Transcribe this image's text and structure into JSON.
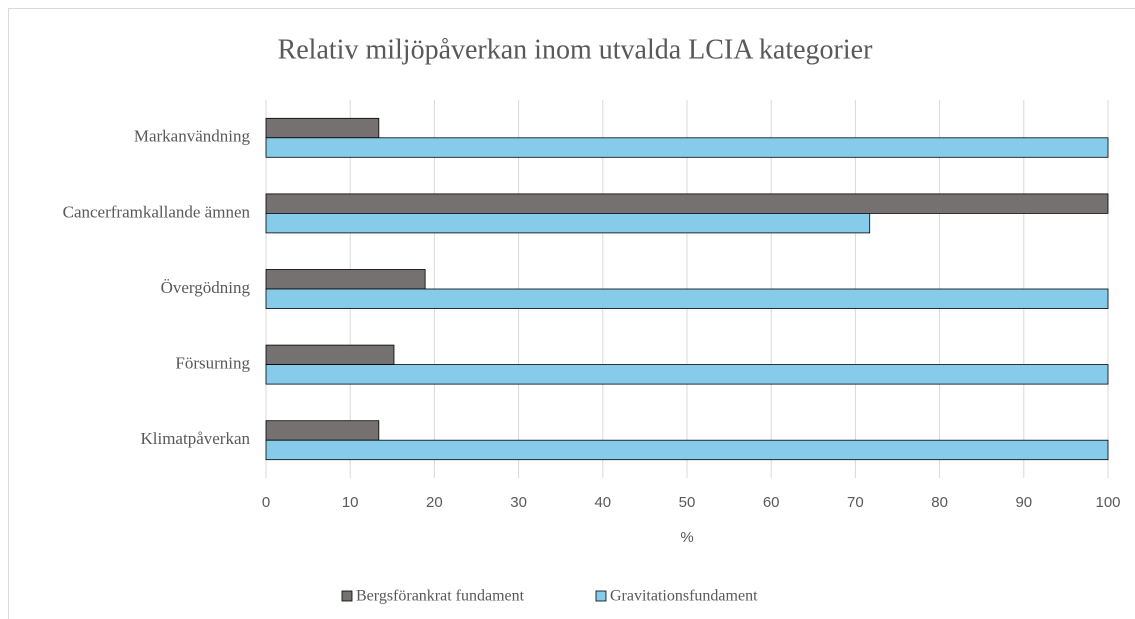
{
  "chart_data": {
    "type": "barh",
    "title": "Relativ miljöpåverkan inom utvalda LCIA kategorier",
    "xlabel": "%",
    "categories": [
      "Markanvändning",
      "Cancerframkallande ämnen",
      "Övergödning",
      "Försurning",
      "Klimatpåverkan"
    ],
    "series": [
      {
        "name": "Bergsförankrat fundament",
        "color": "#767171",
        "values": [
          13.4,
          100,
          18.9,
          15.2,
          13.4
        ]
      },
      {
        "name": "Gravitationsfundament",
        "color": "#87cbeb",
        "values": [
          100,
          71.7,
          100,
          100,
          100
        ]
      }
    ],
    "xlim": [
      0,
      100
    ],
    "xticks": [
      0,
      10,
      20,
      30,
      40,
      50,
      60,
      70,
      80,
      90,
      100
    ],
    "grid": true,
    "legend": "bottom"
  }
}
